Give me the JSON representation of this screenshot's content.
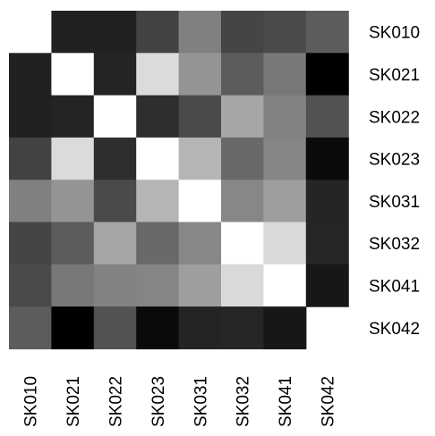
{
  "chart_data": {
    "type": "heatmap",
    "title": "",
    "xlabel": "",
    "ylabel": "",
    "rows": [
      "SK010",
      "SK021",
      "SK022",
      "SK023",
      "SK031",
      "SK032",
      "SK041",
      "SK042"
    ],
    "columns": [
      "SK010",
      "SK021",
      "SK022",
      "SK023",
      "SK031",
      "SK032",
      "SK041",
      "SK042"
    ],
    "values": [
      [
        null,
        0.13,
        0.13,
        0.26,
        0.5,
        0.27,
        0.29,
        0.36
      ],
      [
        0.13,
        1.0,
        0.14,
        0.86,
        0.58,
        0.36,
        0.47,
        0.0
      ],
      [
        0.13,
        0.14,
        1.0,
        0.18,
        0.29,
        0.65,
        0.51,
        0.32
      ],
      [
        0.26,
        0.86,
        0.18,
        1.0,
        0.71,
        0.41,
        0.52,
        0.04
      ],
      [
        0.5,
        0.58,
        0.29,
        0.71,
        1.0,
        0.53,
        0.62,
        0.14
      ],
      [
        0.27,
        0.36,
        0.65,
        0.41,
        0.53,
        1.0,
        0.85,
        0.15
      ],
      [
        0.29,
        0.47,
        0.51,
        0.52,
        0.62,
        0.85,
        1.0,
        0.09
      ],
      [
        0.36,
        0.0,
        0.32,
        0.04,
        0.14,
        0.15,
        0.09,
        null
      ]
    ],
    "color_scale": {
      "low": "#000000",
      "high": "#ffffff"
    },
    "legend": "none",
    "grid": false
  }
}
